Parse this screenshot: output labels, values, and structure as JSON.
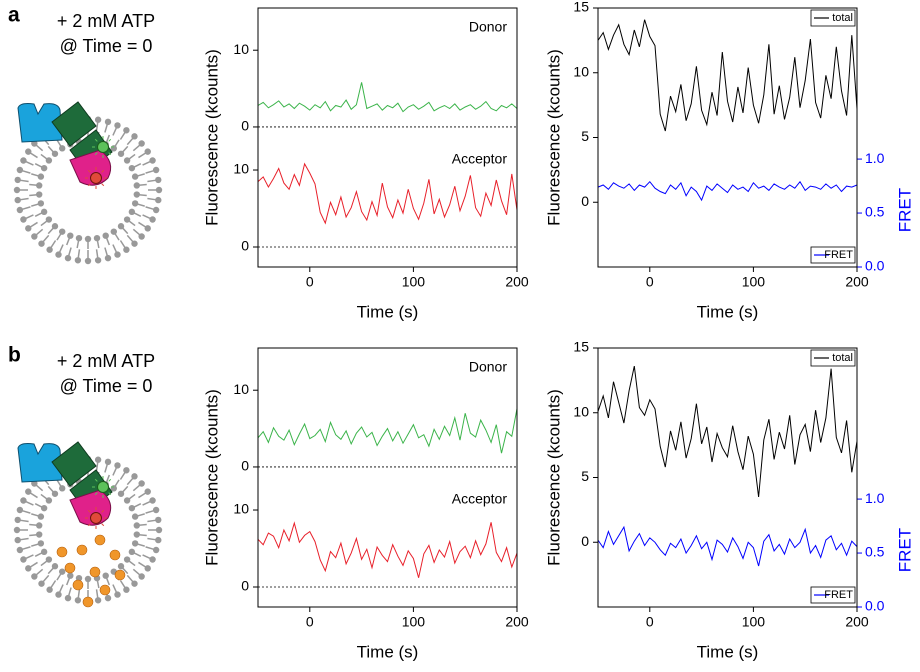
{
  "panels": [
    {
      "label": "a",
      "annotation": [
        "+ 2 mM ATP",
        "@ Time = 0"
      ]
    },
    {
      "label": "b",
      "annotation": [
        "+ 2 mM ATP",
        "@ Time = 0"
      ]
    }
  ],
  "chart_data": [
    {
      "type": "stacked-traces",
      "xlabel": "Time (s)",
      "ylabel": "Fluorescence (kcounts)",
      "xlim": [
        -50,
        200
      ],
      "xticks": [
        0,
        100,
        200
      ],
      "x": [
        -50,
        -45,
        -40,
        -35,
        -30,
        -25,
        -20,
        -15,
        -10,
        -5,
        0,
        5,
        10,
        15,
        20,
        25,
        30,
        35,
        40,
        45,
        50,
        55,
        60,
        65,
        70,
        75,
        80,
        85,
        90,
        95,
        100,
        105,
        110,
        115,
        120,
        125,
        130,
        135,
        140,
        145,
        150,
        155,
        160,
        165,
        170,
        175,
        180,
        185,
        190,
        195,
        200
      ],
      "subplots": [
        {
          "ylim": [
            -1.7,
            15.5
          ],
          "yticks": [
            0,
            10
          ],
          "series": [
            {
              "name": "Donor",
              "color": "#3cb44b",
              "values": [
                2.8,
                3.2,
                2.5,
                2.9,
                3.4,
                2.6,
                3.0,
                2.4,
                3.1,
                2.7,
                2.2,
                2.9,
                2.5,
                3.3,
                2.1,
                2.8,
                2.6,
                3.5,
                2.3,
                2.9,
                5.8,
                2.4,
                2.7,
                3.0,
                2.2,
                2.8,
                2.5,
                3.1,
                2.0,
                2.6,
                2.9,
                2.3,
                2.7,
                3.2,
                2.1,
                2.5,
                2.8,
                2.4,
                3.0,
                2.2,
                2.6,
                2.9,
                2.3,
                2.7,
                3.3,
                2.4,
                2.1,
                2.8,
                2.5,
                3.0,
                2.4
              ]
            }
          ]
        },
        {
          "ylim": [
            -2.6,
            13.9
          ],
          "yticks": [
            0,
            10
          ],
          "series": [
            {
              "name": "Acceptor",
              "color": "#e8202a",
              "values": [
                8.5,
                9.1,
                7.8,
                8.9,
                10.2,
                8.3,
                7.5,
                9.4,
                8.0,
                10.8,
                9.6,
                8.2,
                4.5,
                3.1,
                5.8,
                4.2,
                6.5,
                3.9,
                5.1,
                7.2,
                4.6,
                3.5,
                5.9,
                4.1,
                8.3,
                5.2,
                3.8,
                6.1,
                4.4,
                7.5,
                5.0,
                3.6,
                5.7,
                8.8,
                4.3,
                6.2,
                3.9,
                5.5,
                7.9,
                4.7,
                6.6,
                9.3,
                5.1,
                4.0,
                7.0,
                5.4,
                8.7,
                6.0,
                4.2,
                9.5,
                4.8
              ]
            }
          ]
        }
      ]
    },
    {
      "type": "line",
      "xlabel": "Time (s)",
      "ylabel": "Fluorescence (kcounts)",
      "y2label": "FRET",
      "xlim": [
        -50,
        200
      ],
      "xticks": [
        0,
        100,
        200
      ],
      "ylim": [
        -5,
        15
      ],
      "yticks": [
        0,
        5,
        10,
        15
      ],
      "y2lim": [
        0,
        2.4
      ],
      "y2ticks": [
        {
          "value": 0,
          "label": "0.0"
        },
        {
          "value": 0.5,
          "label": "0.5"
        },
        {
          "value": 1,
          "label": "1.0"
        }
      ],
      "y2color": "#0000ff",
      "x": [
        -50,
        -45,
        -40,
        -35,
        -30,
        -25,
        -20,
        -15,
        -10,
        -5,
        0,
        5,
        10,
        15,
        20,
        25,
        30,
        35,
        40,
        45,
        50,
        55,
        60,
        65,
        70,
        75,
        80,
        85,
        90,
        95,
        100,
        105,
        110,
        115,
        120,
        125,
        130,
        135,
        140,
        145,
        150,
        155,
        160,
        165,
        170,
        175,
        180,
        185,
        190,
        195,
        200
      ],
      "series": [
        {
          "name": "total",
          "color": "#000000",
          "legend": "upper right",
          "values": [
            12.5,
            13.1,
            11.8,
            12.9,
            13.7,
            12.2,
            11.4,
            13.3,
            12.0,
            14.1,
            12.8,
            12.1,
            6.8,
            5.5,
            8.2,
            7.0,
            9.1,
            6.3,
            7.6,
            10.5,
            7.1,
            6.0,
            8.5,
            6.7,
            11.6,
            7.8,
            6.2,
            8.9,
            6.9,
            10.4,
            7.5,
            6.1,
            8.3,
            12.2,
            6.8,
            9.0,
            6.4,
            8.1,
            11.2,
            7.3,
            9.4,
            12.6,
            7.7,
            6.5,
            9.8,
            8.0,
            12.0,
            8.6,
            6.7,
            12.9,
            7.2
          ]
        },
        {
          "name": "FRET",
          "color": "#0000ff",
          "axis": "y2",
          "legend": "lower right",
          "values": [
            0.74,
            0.76,
            0.72,
            0.78,
            0.75,
            0.73,
            0.77,
            0.71,
            0.76,
            0.74,
            0.79,
            0.73,
            0.7,
            0.68,
            0.76,
            0.72,
            0.78,
            0.66,
            0.74,
            0.7,
            0.62,
            0.75,
            0.71,
            0.77,
            0.73,
            0.69,
            0.76,
            0.72,
            0.74,
            0.7,
            0.78,
            0.73,
            0.75,
            0.71,
            0.77,
            0.74,
            0.72,
            0.76,
            0.73,
            0.79,
            0.71,
            0.75,
            0.74,
            0.72,
            0.77,
            0.73,
            0.76,
            0.7,
            0.75,
            0.74,
            0.76
          ]
        }
      ]
    },
    {
      "type": "stacked-traces",
      "xlabel": "Time (s)",
      "ylabel": "Fluorescence (kcounts)",
      "xlim": [
        -50,
        200
      ],
      "xticks": [
        0,
        100,
        200
      ],
      "x": [
        -50,
        -45,
        -40,
        -35,
        -30,
        -25,
        -20,
        -15,
        -10,
        -5,
        0,
        5,
        10,
        15,
        20,
        25,
        30,
        35,
        40,
        45,
        50,
        55,
        60,
        65,
        70,
        75,
        80,
        85,
        90,
        95,
        100,
        105,
        110,
        115,
        120,
        125,
        130,
        135,
        140,
        145,
        150,
        155,
        160,
        165,
        170,
        175,
        180,
        185,
        190,
        195,
        200
      ],
      "subplots": [
        {
          "ylim": [
            -1.7,
            15.5
          ],
          "yticks": [
            0,
            10
          ],
          "series": [
            {
              "name": "Donor",
              "color": "#3cb44b",
              "values": [
                3.8,
                4.6,
                3.2,
                5.1,
                4.0,
                3.5,
                4.8,
                2.9,
                4.3,
                5.6,
                3.7,
                4.1,
                4.9,
                3.3,
                5.8,
                4.2,
                3.6,
                4.7,
                3.0,
                4.4,
                5.2,
                3.9,
                4.5,
                2.8,
                4.0,
                5.0,
                3.4,
                4.6,
                3.1,
                4.3,
                5.5,
                3.8,
                4.2,
                2.7,
                4.9,
                3.6,
                5.3,
                4.1,
                6.4,
                3.5,
                7.0,
                4.4,
                3.9,
                6.1,
                4.8,
                3.2,
                5.5,
                1.8,
                4.6,
                4.0,
                7.6
              ]
            }
          ]
        },
        {
          "ylim": [
            -2.6,
            13.9
          ],
          "yticks": [
            0,
            10
          ],
          "series": [
            {
              "name": "Acceptor",
              "color": "#e8202a",
              "values": [
                6.2,
                5.5,
                7.0,
                6.6,
                5.1,
                7.4,
                6.0,
                8.3,
                5.8,
                6.7,
                7.2,
                5.9,
                3.5,
                2.1,
                4.6,
                3.8,
                5.7,
                3.0,
                4.4,
                6.3,
                3.6,
                4.9,
                2.5,
                5.2,
                4.1,
                3.3,
                5.5,
                4.0,
                2.8,
                4.7,
                3.7,
                1.2,
                4.3,
                5.4,
                3.2,
                4.8,
                3.9,
                5.9,
                3.1,
                4.6,
                5.3,
                3.8,
                6.0,
                4.2,
                5.6,
                8.4,
                4.5,
                3.3,
                5.1,
                2.6,
                4.4
              ]
            }
          ]
        }
      ]
    },
    {
      "type": "line",
      "xlabel": "Time (s)",
      "ylabel": "Fluorescence (kcounts)",
      "y2label": "FRET",
      "xlim": [
        -50,
        200
      ],
      "xticks": [
        0,
        100,
        200
      ],
      "ylim": [
        -5,
        15
      ],
      "yticks": [
        0,
        5,
        10,
        15
      ],
      "y2lim": [
        0,
        2.4
      ],
      "y2ticks": [
        {
          "value": 0,
          "label": "0.0"
        },
        {
          "value": 0.5,
          "label": "0.5"
        },
        {
          "value": 1,
          "label": "1.0"
        }
      ],
      "y2color": "#0000ff",
      "x": [
        -50,
        -45,
        -40,
        -35,
        -30,
        -25,
        -20,
        -15,
        -10,
        -5,
        0,
        5,
        10,
        15,
        20,
        25,
        30,
        35,
        40,
        45,
        50,
        55,
        60,
        65,
        70,
        75,
        80,
        85,
        90,
        95,
        100,
        105,
        110,
        115,
        120,
        125,
        130,
        135,
        140,
        145,
        150,
        155,
        160,
        165,
        170,
        175,
        180,
        185,
        190,
        195,
        200
      ],
      "series": [
        {
          "name": "total",
          "color": "#000000",
          "legend": "upper right",
          "values": [
            10.1,
            11.3,
            9.6,
            12.4,
            10.8,
            9.2,
            11.7,
            13.6,
            10.4,
            9.8,
            11.0,
            10.3,
            7.4,
            5.8,
            8.6,
            7.1,
            9.3,
            6.5,
            8.0,
            10.7,
            7.6,
            8.9,
            6.2,
            8.4,
            7.3,
            6.6,
            9.0,
            7.0,
            5.6,
            8.2,
            6.8,
            3.5,
            7.9,
            9.5,
            6.4,
            8.5,
            7.2,
            9.8,
            6.0,
            8.3,
            9.1,
            7.0,
            10.2,
            7.7,
            9.6,
            13.4,
            8.1,
            6.9,
            9.4,
            5.4,
            7.8
          ]
        },
        {
          "name": "FRET",
          "color": "#0000ff",
          "axis": "y2",
          "legend": "lower right",
          "values": [
            0.62,
            0.55,
            0.7,
            0.58,
            0.66,
            0.74,
            0.52,
            0.61,
            0.68,
            0.57,
            0.64,
            0.6,
            0.53,
            0.48,
            0.59,
            0.55,
            0.63,
            0.5,
            0.57,
            0.66,
            0.54,
            0.6,
            0.44,
            0.62,
            0.58,
            0.51,
            0.64,
            0.56,
            0.45,
            0.6,
            0.55,
            0.38,
            0.61,
            0.67,
            0.52,
            0.58,
            0.49,
            0.63,
            0.55,
            0.6,
            0.72,
            0.5,
            0.57,
            0.46,
            0.62,
            0.66,
            0.53,
            0.59,
            0.48,
            0.61,
            0.56
          ]
        }
      ]
    }
  ]
}
